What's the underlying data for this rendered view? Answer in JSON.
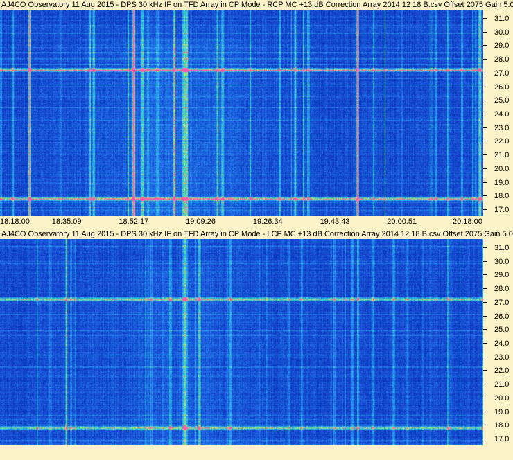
{
  "chart_data": [
    {
      "type": "heatmap",
      "title": "AJ4CO Observatory 11 Aug 2015 - DPS 30 kHz IF on TFD Array in CP Mode - RCP  MC +13 dB  Correction Array 2014 12 18 B.csv  Offset 2075  Gain 5.0",
      "ylabel": "",
      "xlabel": "",
      "ylim": [
        16.5,
        31.6
      ],
      "yticks": [
        "31.0",
        "30.0",
        "29.0",
        "28.0",
        "27.0",
        "26.0",
        "25.0",
        "24.0",
        "23.0",
        "22.0",
        "21.0",
        "20.0",
        "19.0",
        "18.0",
        "17.0"
      ],
      "xticks": [
        "18:18:00",
        "18:35:09",
        "18:52:17",
        "19:09:26",
        "19:26:34",
        "19:43:43",
        "20:00:51",
        "20:18:00"
      ],
      "interference_bands_mhz": [
        27.2,
        17.8
      ]
    },
    {
      "type": "heatmap",
      "title": "AJ4CO Observatory 11 Aug 2015 - DPS 30 kHz IF on TFD Array in CP Mode - LCP  MC +13 dB  Correction Array 2014 12 18 B.csv  Offset 2075  Gain 5.0",
      "ylabel": "",
      "xlabel": "",
      "ylim": [
        16.5,
        31.6
      ],
      "yticks": [
        "31.0",
        "30.0",
        "29.0",
        "28.0",
        "27.0",
        "26.0",
        "25.0",
        "24.0",
        "23.0",
        "22.0",
        "21.0",
        "20.0",
        "19.0",
        "18.0",
        "17.0"
      ],
      "interference_bands_mhz": [
        27.2,
        17.8
      ]
    }
  ],
  "colors": {
    "background": "#fdf3c8",
    "low": "#1030b0",
    "mid": "#2a9cf0",
    "high": "#40e0a0",
    "peak": "#ff40a0"
  }
}
